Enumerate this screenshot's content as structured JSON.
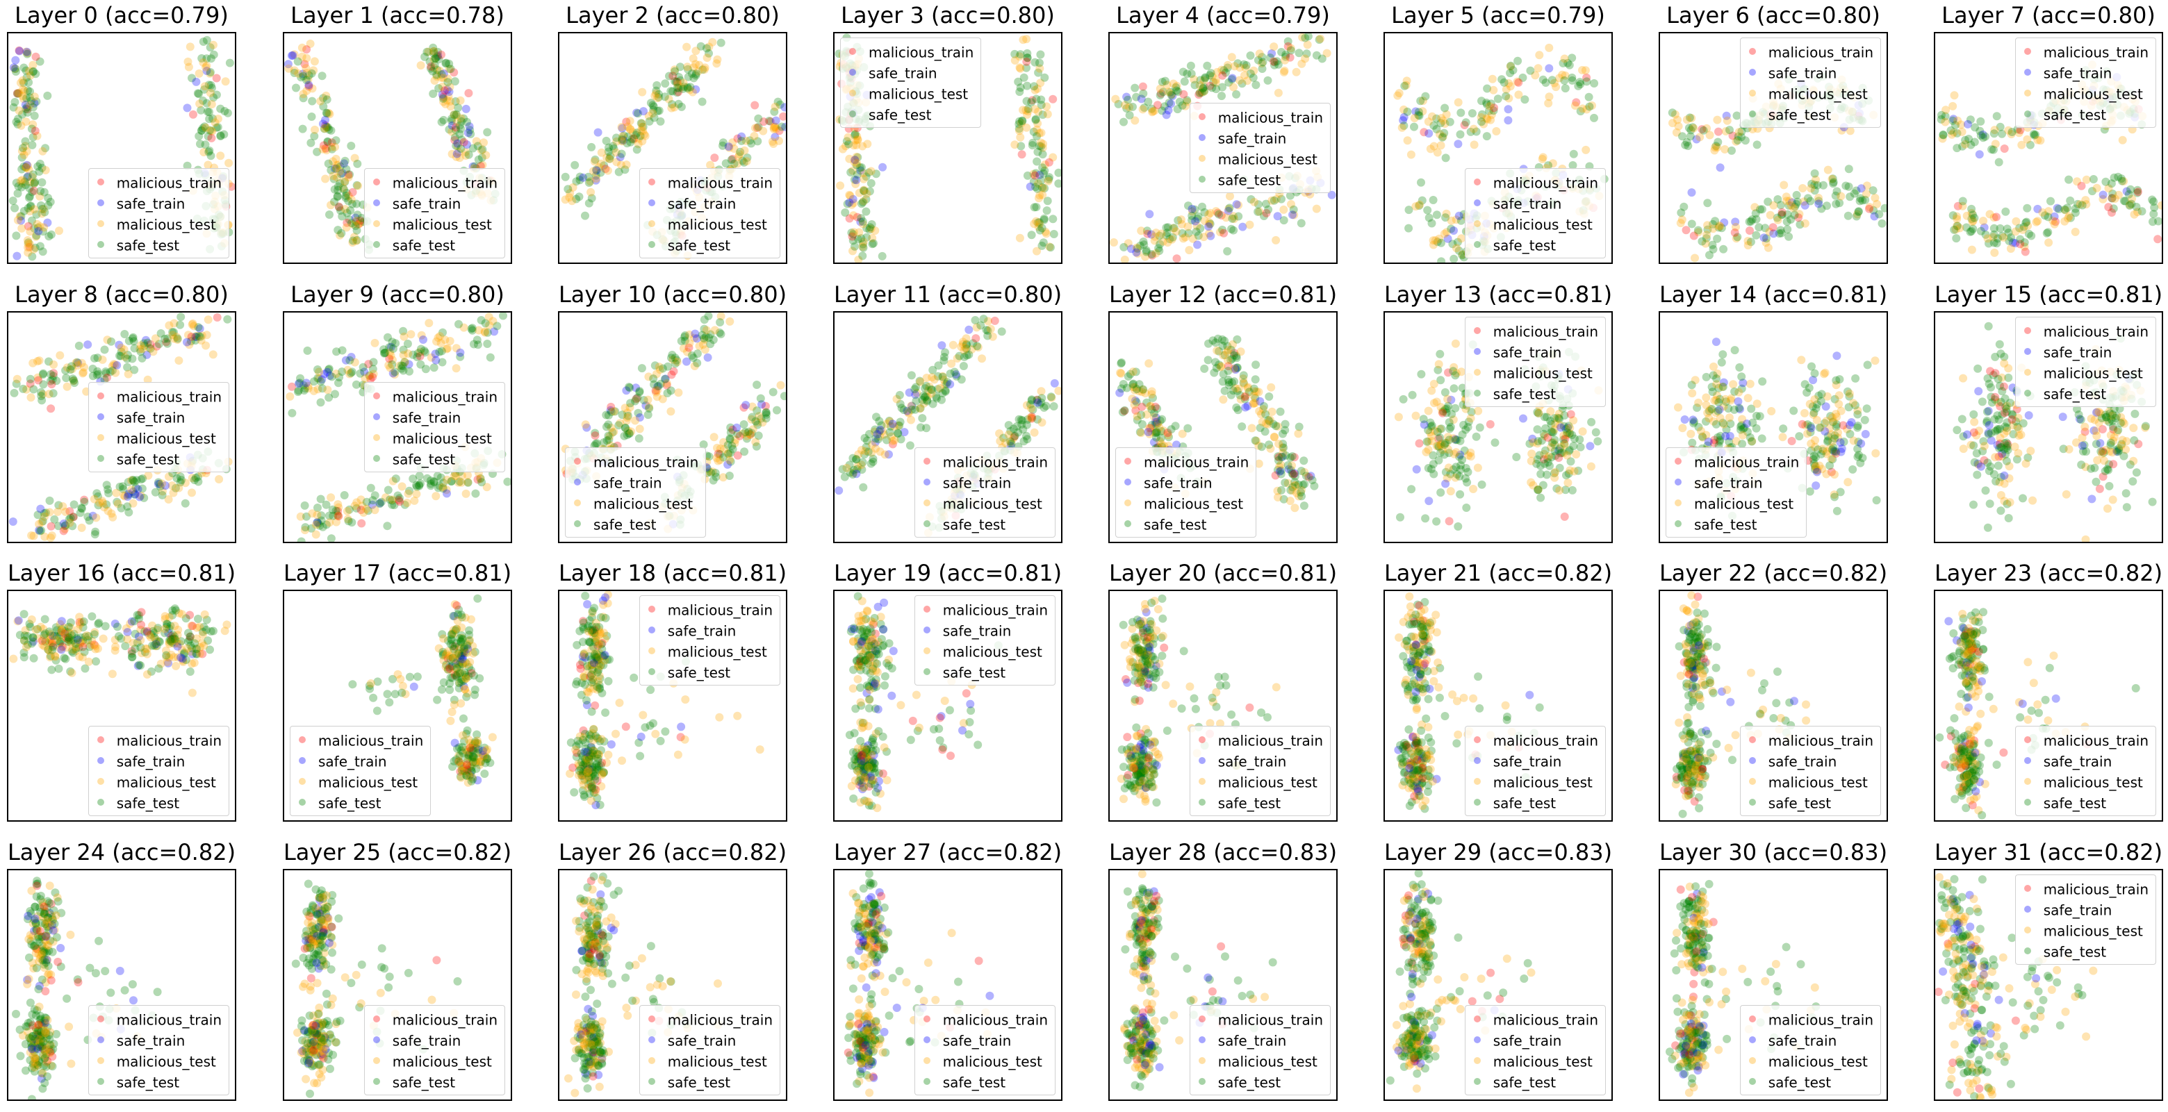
{
  "chart_data": {
    "type": "scatter",
    "grid_rows": 4,
    "grid_cols": 8,
    "axes_ticks": false,
    "grid": false,
    "legend": {
      "entries": [
        {
          "label": "malicious_train",
          "color": "#ff0000"
        },
        {
          "label": "safe_train",
          "color": "#0000ff"
        },
        {
          "label": "malicious_test",
          "color": "#ffa500"
        },
        {
          "label": "safe_test",
          "color": "#008000"
        }
      ]
    },
    "panels": [
      {
        "title": "Layer 0 (acc=0.79)",
        "layer": 0,
        "acc": 0.79,
        "legend_loc": "lower right",
        "pattern": "two vertical clusters"
      },
      {
        "title": "Layer 1 (acc=0.78)",
        "layer": 1,
        "acc": 0.78,
        "legend_loc": "lower right",
        "pattern": "two diagonal bands"
      },
      {
        "title": "Layer 2 (acc=0.80)",
        "layer": 2,
        "acc": 0.8,
        "legend_loc": "lower right",
        "pattern": "two rising bands"
      },
      {
        "title": "Layer 3 (acc=0.80)",
        "layer": 3,
        "acc": 0.8,
        "legend_loc": "upper left",
        "pattern": "two vertical clusters"
      },
      {
        "title": "Layer 4 (acc=0.79)",
        "layer": 4,
        "acc": 0.79,
        "legend_loc": "center right",
        "pattern": "two horizontal bands"
      },
      {
        "title": "Layer 5 (acc=0.79)",
        "layer": 5,
        "acc": 0.79,
        "legend_loc": "lower right",
        "pattern": "wave clusters"
      },
      {
        "title": "Layer 6 (acc=0.80)",
        "layer": 6,
        "acc": 0.8,
        "legend_loc": "upper right",
        "pattern": "two wave bands"
      },
      {
        "title": "Layer 7 (acc=0.80)",
        "layer": 7,
        "acc": 0.8,
        "legend_loc": "upper right",
        "pattern": "two wave bands"
      },
      {
        "title": "Layer 8 (acc=0.80)",
        "layer": 8,
        "acc": 0.8,
        "legend_loc": "center right",
        "pattern": "two horizontal bands"
      },
      {
        "title": "Layer 9 (acc=0.80)",
        "layer": 9,
        "acc": 0.8,
        "legend_loc": "center right",
        "pattern": "two horizontal bands"
      },
      {
        "title": "Layer 10 (acc=0.80)",
        "layer": 10,
        "acc": 0.8,
        "legend_loc": "lower left",
        "pattern": "two rising bands"
      },
      {
        "title": "Layer 11 (acc=0.80)",
        "layer": 11,
        "acc": 0.8,
        "legend_loc": "lower right",
        "pattern": "two rising bands"
      },
      {
        "title": "Layer 12 (acc=0.81)",
        "layer": 12,
        "acc": 0.81,
        "legend_loc": "lower left",
        "pattern": "two falling bands"
      },
      {
        "title": "Layer 13 (acc=0.81)",
        "layer": 13,
        "acc": 0.81,
        "legend_loc": "upper right",
        "pattern": "blob clusters"
      },
      {
        "title": "Layer 14 (acc=0.81)",
        "layer": 14,
        "acc": 0.81,
        "legend_loc": "lower left",
        "pattern": "blob clusters"
      },
      {
        "title": "Layer 15 (acc=0.81)",
        "layer": 15,
        "acc": 0.81,
        "legend_loc": "upper right",
        "pattern": "blob clusters"
      },
      {
        "title": "Layer 16 (acc=0.81)",
        "layer": 16,
        "acc": 0.81,
        "legend_loc": "lower right",
        "pattern": "horizontal cloud"
      },
      {
        "title": "Layer 17 (acc=0.81)",
        "layer": 17,
        "acc": 0.81,
        "legend_loc": "lower left",
        "pattern": "right clusters"
      },
      {
        "title": "Layer 18 (acc=0.81)",
        "layer": 18,
        "acc": 0.81,
        "legend_loc": "upper right",
        "pattern": "left column clusters"
      },
      {
        "title": "Layer 19 (acc=0.81)",
        "layer": 19,
        "acc": 0.81,
        "legend_loc": "upper right",
        "pattern": "left column clusters"
      },
      {
        "title": "Layer 20 (acc=0.81)",
        "layer": 20,
        "acc": 0.81,
        "legend_loc": "lower right",
        "pattern": "left column clusters"
      },
      {
        "title": "Layer 21 (acc=0.82)",
        "layer": 21,
        "acc": 0.82,
        "legend_loc": "lower right",
        "pattern": "left column clusters"
      },
      {
        "title": "Layer 22 (acc=0.82)",
        "layer": 22,
        "acc": 0.82,
        "legend_loc": "lower right",
        "pattern": "left column clusters"
      },
      {
        "title": "Layer 23 (acc=0.82)",
        "layer": 23,
        "acc": 0.82,
        "legend_loc": "lower right",
        "pattern": "left column clusters"
      },
      {
        "title": "Layer 24 (acc=0.82)",
        "layer": 24,
        "acc": 0.82,
        "legend_loc": "lower right",
        "pattern": "left column clusters"
      },
      {
        "title": "Layer 25 (acc=0.82)",
        "layer": 25,
        "acc": 0.82,
        "legend_loc": "lower right",
        "pattern": "left column clusters"
      },
      {
        "title": "Layer 26 (acc=0.82)",
        "layer": 26,
        "acc": 0.82,
        "legend_loc": "lower right",
        "pattern": "left column clusters"
      },
      {
        "title": "Layer 27 (acc=0.82)",
        "layer": 27,
        "acc": 0.82,
        "legend_loc": "lower right",
        "pattern": "left column clusters"
      },
      {
        "title": "Layer 28 (acc=0.83)",
        "layer": 28,
        "acc": 0.83,
        "legend_loc": "lower right",
        "pattern": "left column clusters"
      },
      {
        "title": "Layer 29 (acc=0.83)",
        "layer": 29,
        "acc": 0.83,
        "legend_loc": "lower right",
        "pattern": "left column clusters"
      },
      {
        "title": "Layer 30 (acc=0.83)",
        "layer": 30,
        "acc": 0.83,
        "legend_loc": "lower right",
        "pattern": "left column clusters"
      },
      {
        "title": "Layer 31 (acc=0.82)",
        "layer": 31,
        "acc": 0.82,
        "legend_loc": "upper right",
        "pattern": "left wedge"
      }
    ]
  }
}
